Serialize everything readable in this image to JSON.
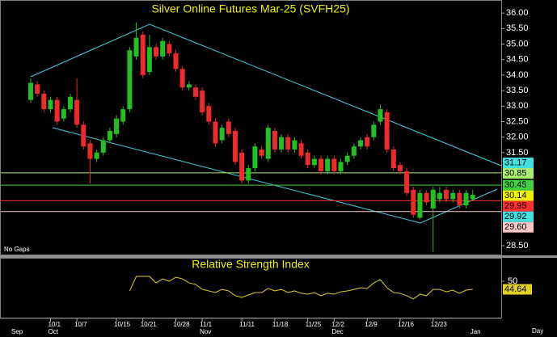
{
  "chart_data": [
    {
      "type": "candlestick",
      "title": "Silver Online Futures Mar-25 (SVFH25)",
      "note": "No Gaps",
      "x_label": "Day",
      "categories": [
        null,
        null,
        null,
        "10/1",
        null,
        null,
        null,
        "10/7",
        null,
        null,
        null,
        null,
        null,
        "10/15",
        null,
        null,
        null,
        "10/21",
        null,
        null,
        null,
        null,
        "10/28",
        null,
        null,
        null,
        "11/1",
        null,
        null,
        null,
        null,
        null,
        "11/11",
        null,
        null,
        null,
        null,
        "11/18",
        null,
        null,
        null,
        null,
        "11/25",
        null,
        null,
        null,
        "12/2",
        null,
        null,
        null,
        null,
        "12/9",
        null,
        null,
        null,
        null,
        "12/16",
        null,
        null,
        null,
        null,
        "12/23",
        null,
        null,
        null,
        null,
        null,
        null
      ],
      "months": [
        "Sep",
        null,
        null,
        "Oct",
        null,
        null,
        null,
        null,
        null,
        null,
        null,
        null,
        null,
        null,
        null,
        null,
        null,
        null,
        null,
        null,
        null,
        null,
        null,
        null,
        null,
        null,
        "Nov",
        null,
        null,
        null,
        null,
        null,
        null,
        null,
        null,
        null,
        null,
        null,
        null,
        null,
        null,
        null,
        null,
        null,
        null,
        null,
        "Dec",
        null,
        null,
        null,
        null,
        null,
        null,
        null,
        null,
        null,
        null,
        null,
        null,
        null,
        null,
        null,
        null,
        null,
        null,
        null,
        null,
        "Jan"
      ],
      "open": [
        33.2,
        33.7,
        33.4,
        32.9,
        33.2,
        32.6,
        32.9,
        33.2,
        32.4,
        31.8,
        31.3,
        31.5,
        31.9,
        32.1,
        32.5,
        32.9,
        34.6,
        35.3,
        34.1,
        34.9,
        34.6,
        35.0,
        34.7,
        34.2,
        33.6,
        33.6,
        33.5,
        33.0,
        32.5,
        31.9,
        32.5,
        32.2,
        31.5,
        30.6,
        31.0,
        31.6,
        31.3,
        32.2,
        31.6,
        32.0,
        31.6,
        31.8,
        31.5,
        31.1,
        31.3,
        30.9,
        31.3,
        30.9,
        31.2,
        31.4,
        31.7,
        32.0,
        32.0,
        32.5,
        32.8,
        31.6,
        31.1,
        30.9,
        30.3,
        29.4,
        30.2,
        29.7,
        30.0,
        30.3,
        30.0,
        30.2,
        29.8,
        30.0
      ],
      "high": [
        33.9,
        33.8,
        33.5,
        33.3,
        33.3,
        33.0,
        33.4,
        33.9,
        32.5,
        31.9,
        31.6,
        32.0,
        32.3,
        32.7,
        33.0,
        34.9,
        35.7,
        35.4,
        35.3,
        35.0,
        35.2,
        35.1,
        34.8,
        34.3,
        33.8,
        33.7,
        33.6,
        33.1,
        32.6,
        32.4,
        32.6,
        32.3,
        31.6,
        31.1,
        31.8,
        31.7,
        32.4,
        32.3,
        32.1,
        32.1,
        32.0,
        31.9,
        31.6,
        31.4,
        31.4,
        31.4,
        31.4,
        31.3,
        31.5,
        31.8,
        32.0,
        32.1,
        32.5,
        33.05,
        32.9,
        31.7,
        31.2,
        31.0,
        30.4,
        30.3,
        30.3,
        30.4,
        30.4,
        30.4,
        30.3,
        30.3,
        30.3,
        30.3
      ],
      "low": [
        33.1,
        33.3,
        32.8,
        32.8,
        32.4,
        32.5,
        32.8,
        32.3,
        31.6,
        30.5,
        31.2,
        31.4,
        31.8,
        32.0,
        32.4,
        32.8,
        34.5,
        33.9,
        34.0,
        34.5,
        34.5,
        34.6,
        34.1,
        33.5,
        33.5,
        33.2,
        32.7,
        32.4,
        31.7,
        31.8,
        32.0,
        31.1,
        30.5,
        30.5,
        30.9,
        31.3,
        31.2,
        31.5,
        31.5,
        31.5,
        31.5,
        31.3,
        31.0,
        31.0,
        30.8,
        30.8,
        30.8,
        30.8,
        31.1,
        31.3,
        31.6,
        31.6,
        31.9,
        32.4,
        31.5,
        30.9,
        30.8,
        30.1,
        29.4,
        29.35,
        29.8,
        28.3,
        29.9,
        29.9,
        29.9,
        29.7,
        29.7,
        29.95
      ],
      "close": [
        33.75,
        33.4,
        32.9,
        33.2,
        32.5,
        32.9,
        33.3,
        32.4,
        31.7,
        31.3,
        31.5,
        31.9,
        32.2,
        32.6,
        32.9,
        34.8,
        35.2,
        34.0,
        34.9,
        34.6,
        35.1,
        34.7,
        34.2,
        33.6,
        33.7,
        33.3,
        32.8,
        32.5,
        31.8,
        32.3,
        32.1,
        31.2,
        30.6,
        31.0,
        31.7,
        31.4,
        32.3,
        31.6,
        32.0,
        31.6,
        31.9,
        31.4,
        31.1,
        31.3,
        30.9,
        31.3,
        30.9,
        31.2,
        31.4,
        31.7,
        31.9,
        31.7,
        32.4,
        32.9,
        31.6,
        31.0,
        30.9,
        30.2,
        29.5,
        30.2,
        29.9,
        30.3,
        30.2,
        30.0,
        30.2,
        29.8,
        30.2,
        30.14
      ],
      "up_color": "#22c022",
      "down_color": "#ee2a2a",
      "ylim": [
        28.24,
        36.29
      ],
      "yticks": [
        {
          "value": 36,
          "label": "36.00"
        },
        {
          "value": 35.5,
          "label": "35.50"
        },
        {
          "value": 35,
          "label": "35.00"
        },
        {
          "value": 34.5,
          "label": "34.50"
        },
        {
          "value": 34,
          "label": "34.00"
        },
        {
          "value": 33.5,
          "label": "33.50"
        },
        {
          "value": 33,
          "label": "33.00"
        },
        {
          "value": 32.5,
          "label": "32.50"
        },
        {
          "value": 32,
          "label": "32.00"
        },
        {
          "value": 31.5,
          "label": "31.50"
        },
        {
          "value": 28.5,
          "label": "28.50"
        }
      ],
      "markers": [
        {
          "value": 31.17,
          "color": "#40e0e0",
          "line": false
        },
        {
          "value": 30.85,
          "color": "#a8f070",
          "line": true
        },
        {
          "value": 30.45,
          "color": "#40d040",
          "line": true
        },
        {
          "value": 30.14,
          "color": "#f0f000",
          "line": false
        },
        {
          "value": 29.95,
          "color": "#ff3030",
          "line": true
        },
        {
          "value": 29.92,
          "color": "#40e0e0",
          "line": false
        },
        {
          "value": 29.6,
          "label": "29.60",
          "color": "#f8c8c8",
          "line": true
        }
      ]
    },
    {
      "type": "line",
      "title": "Relative Strength Index",
      "color": "#e0d020",
      "values": [
        null,
        null,
        null,
        null,
        null,
        null,
        null,
        null,
        null,
        null,
        null,
        null,
        null,
        null,
        null,
        43.6,
        53.2,
        53.2,
        53.2,
        48.9,
        51.6,
        50.0,
        52.7,
        51.6,
        48.9,
        47.9,
        44.6,
        43.6,
        42.5,
        44.6,
        43.6,
        40.4,
        39.3,
        40.9,
        42.5,
        42.5,
        45.2,
        43.6,
        44.6,
        42.5,
        43.6,
        42.0,
        41.4,
        42.5,
        40.4,
        42.0,
        41.4,
        43.0,
        43.6,
        44.6,
        45.7,
        45.2,
        48.9,
        51.1,
        45.7,
        42.5,
        42.0,
        40.4,
        38.2,
        41.4,
        40.4,
        44.6,
        44.6,
        43.0,
        44.1,
        42.0,
        44.1,
        44.64
      ],
      "ylim": [
        26.4,
        64.5
      ],
      "yticks": [
        50
      ]
    }
  ]
}
